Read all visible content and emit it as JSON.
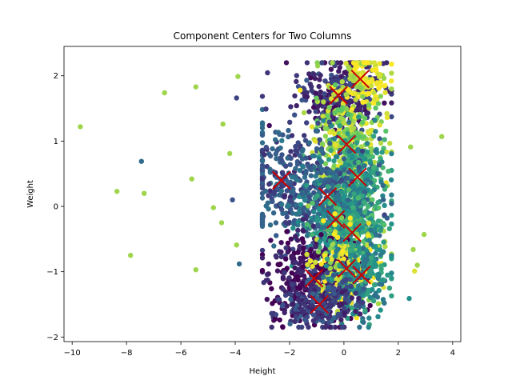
{
  "chart_data": {
    "type": "scatter",
    "title": "Component Centers for Two Columns",
    "xlabel": "Height",
    "ylabel": "Weight",
    "xlim": [
      -10.3,
      4.3
    ],
    "ylim": [
      -2.07,
      2.45
    ],
    "xticks": [
      -10,
      -8,
      -6,
      -4,
      -2,
      0,
      2,
      4
    ],
    "xtick_labels": [
      "−10",
      "−8",
      "−6",
      "−4",
      "−2",
      "0",
      "2",
      "4"
    ],
    "yticks": [
      -2,
      -1,
      0,
      1,
      2
    ],
    "ytick_labels": [
      "−2",
      "−1",
      "0",
      "1",
      "2"
    ],
    "grid": false,
    "legend": "none",
    "colormap": "viridis",
    "point_color": "viridis-by-component",
    "center_marker": "x",
    "center_color": "#cc0000",
    "series": [
      {
        "kind": "outliers",
        "points": [
          {
            "x": -9.7,
            "y": 1.22,
            "c": 0.85
          },
          {
            "x": -8.35,
            "y": 0.23,
            "c": 0.85
          },
          {
            "x": -7.85,
            "y": -0.75,
            "c": 0.85
          },
          {
            "x": -7.45,
            "y": 0.69,
            "c": 0.35
          },
          {
            "x": -7.35,
            "y": 0.2,
            "c": 0.85
          },
          {
            "x": -6.6,
            "y": 1.74,
            "c": 0.85
          },
          {
            "x": -5.6,
            "y": 0.42,
            "c": 0.85
          },
          {
            "x": -5.45,
            "y": 1.83,
            "c": 0.85
          },
          {
            "x": -5.45,
            "y": -0.97,
            "c": 0.85
          },
          {
            "x": -4.8,
            "y": -0.02,
            "c": 0.85
          },
          {
            "x": -4.5,
            "y": -0.25,
            "c": 0.85
          },
          {
            "x": -4.45,
            "y": 1.26,
            "c": 0.85
          },
          {
            "x": -4.2,
            "y": 0.81,
            "c": 0.85
          },
          {
            "x": -4.1,
            "y": 0.1,
            "c": 0.25
          },
          {
            "x": -3.95,
            "y": 1.66,
            "c": 0.2
          },
          {
            "x": -3.95,
            "y": -0.59,
            "c": 0.85
          },
          {
            "x": -3.9,
            "y": 1.99,
            "c": 0.85
          },
          {
            "x": -3.85,
            "y": -0.88,
            "c": 0.35
          },
          {
            "x": 3.6,
            "y": 1.07,
            "c": 0.85
          },
          {
            "x": 2.95,
            "y": -0.43,
            "c": 0.85
          },
          {
            "x": 2.7,
            "y": -0.9,
            "c": 0.85
          },
          {
            "x": 2.6,
            "y": -0.99,
            "c": 0.95
          },
          {
            "x": 2.55,
            "y": -0.66,
            "c": 0.85
          },
          {
            "x": 2.45,
            "y": 0.91,
            "c": 0.85
          },
          {
            "x": 2.4,
            "y": -1.41,
            "c": 0.5
          }
        ]
      }
    ],
    "components": [
      {
        "x": -0.2,
        "y": 1.7,
        "sx": 0.75,
        "sy": 0.3,
        "c": 0.15,
        "n": 330
      },
      {
        "x": 0.6,
        "y": 1.95,
        "sx": 0.55,
        "sy": 0.2,
        "c": 0.95,
        "n": 130
      },
      {
        "x": 0.1,
        "y": 0.95,
        "sx": 0.7,
        "sy": 0.4,
        "c": 0.85,
        "n": 300
      },
      {
        "x": 0.5,
        "y": 0.45,
        "sx": 0.6,
        "sy": 0.35,
        "c": 0.55,
        "n": 240
      },
      {
        "x": -2.3,
        "y": 0.4,
        "sx": 0.7,
        "sy": 0.45,
        "c": 0.25,
        "n": 230
      },
      {
        "x": -0.6,
        "y": 0.15,
        "sx": 0.8,
        "sy": 0.4,
        "c": 0.3,
        "n": 260
      },
      {
        "x": -0.3,
        "y": -0.2,
        "sx": 0.7,
        "sy": 0.3,
        "c": 0.42,
        "n": 230
      },
      {
        "x": 0.3,
        "y": -0.4,
        "sx": 0.65,
        "sy": 0.3,
        "c": 0.62,
        "n": 230
      },
      {
        "x": -1.1,
        "y": -1.1,
        "sx": 0.85,
        "sy": 0.35,
        "c": 0.05,
        "n": 400
      },
      {
        "x": 0.1,
        "y": -0.95,
        "sx": 0.6,
        "sy": 0.3,
        "c": 0.92,
        "n": 200
      },
      {
        "x": 0.65,
        "y": -1.05,
        "sx": 0.6,
        "sy": 0.35,
        "c": 0.48,
        "n": 230
      },
      {
        "x": -0.9,
        "y": -1.5,
        "sx": 0.75,
        "sy": 0.2,
        "c": 0.2,
        "n": 210
      }
    ]
  }
}
